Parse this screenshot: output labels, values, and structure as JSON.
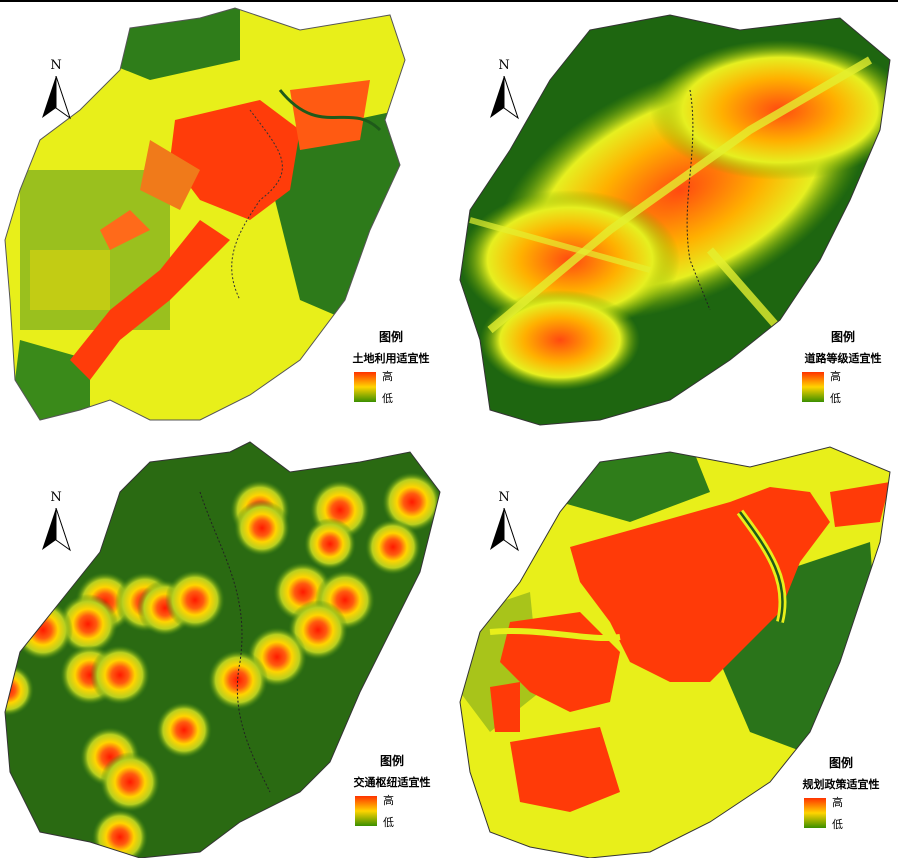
{
  "legend_common_title": "图例",
  "north_letter": "N",
  "high_label": "高",
  "low_label": "低",
  "colors": {
    "high": "#ff3300",
    "mid": "#ffd400",
    "low_green": "#7fb000",
    "forest": "#1d6a12",
    "boundary": "#333333"
  },
  "panels": [
    {
      "key": "land_use",
      "legend_name": "土地利用适宜性"
    },
    {
      "key": "road_grade",
      "legend_name": "道路等级适宜性"
    },
    {
      "key": "transport_hub",
      "legend_name": "交通枢纽适宜性"
    },
    {
      "key": "planning_policy",
      "legend_name": "规划政策适宜性"
    }
  ]
}
